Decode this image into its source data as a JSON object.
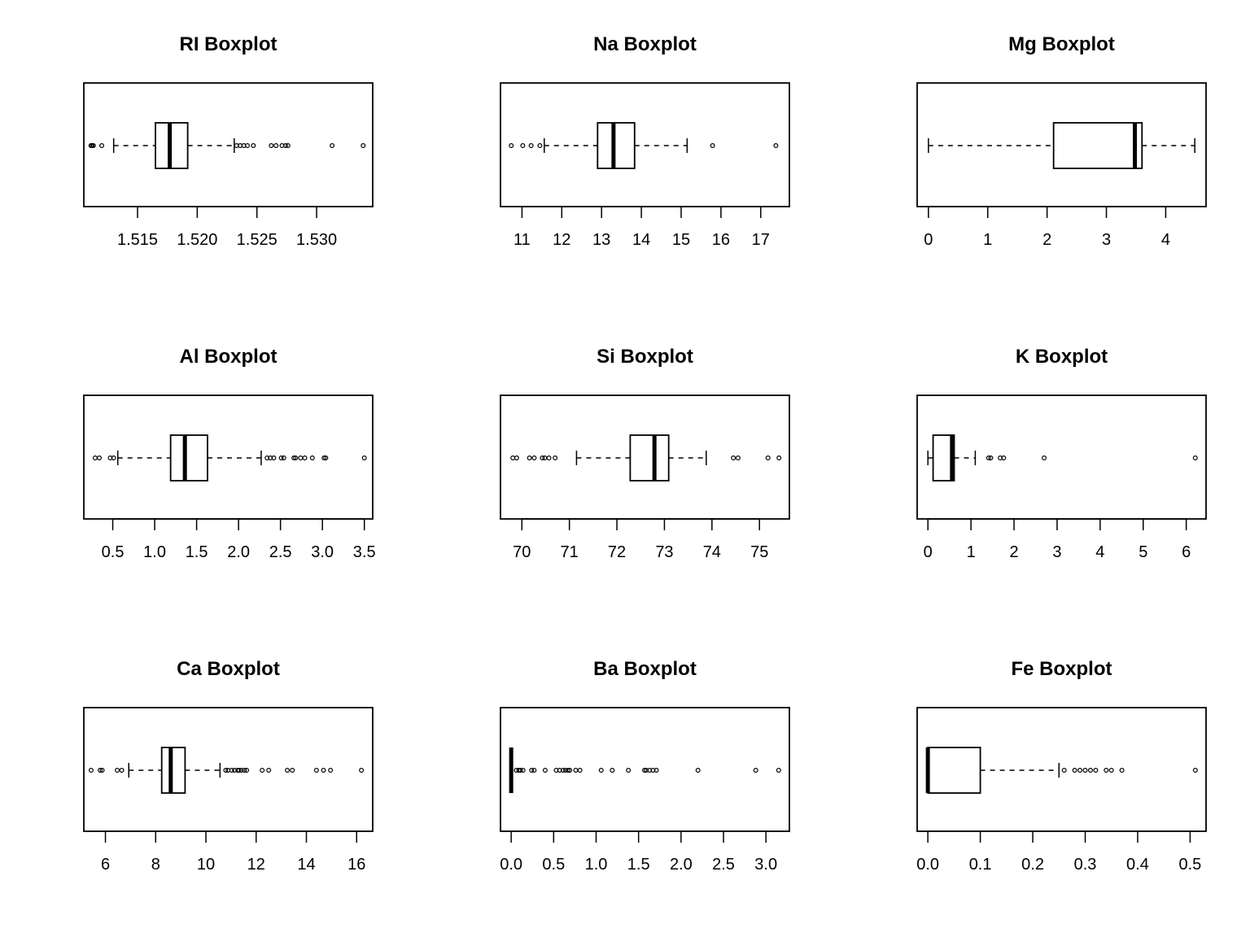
{
  "chart_data": [
    {
      "type": "boxplot",
      "orientation": "horizontal",
      "title": "RI Boxplot",
      "xlim": [
        1.5105,
        1.5347
      ],
      "ticks": [
        1.515,
        1.52,
        1.525,
        1.53
      ],
      "tick_labels": [
        "1.515",
        "1.520",
        "1.525",
        "1.530"
      ],
      "whisker_low": 1.513,
      "q1": 1.5165,
      "median": 1.5177,
      "q3": 1.5192,
      "whisker_high": 1.5231,
      "outliers": [
        1.5111,
        1.5112,
        1.5113,
        1.512,
        1.5233,
        1.5236,
        1.5239,
        1.5242,
        1.5247,
        1.5262,
        1.5266,
        1.5271,
        1.5274,
        1.5276,
        1.5313,
        1.5339
      ]
    },
    {
      "type": "boxplot",
      "orientation": "horizontal",
      "title": "Na Boxplot",
      "xlim": [
        10.46,
        17.72
      ],
      "ticks": [
        11,
        12,
        13,
        14,
        15,
        16,
        17
      ],
      "tick_labels": [
        "11",
        "12",
        "13",
        "14",
        "15",
        "16",
        "17"
      ],
      "whisker_low": 11.56,
      "q1": 12.9,
      "median": 13.3,
      "q3": 13.83,
      "whisker_high": 15.15,
      "outliers": [
        10.73,
        11.02,
        11.23,
        11.45,
        15.79,
        17.38
      ]
    },
    {
      "type": "boxplot",
      "orientation": "horizontal",
      "title": "Mg Boxplot",
      "xlim": [
        -0.19,
        4.68
      ],
      "ticks": [
        0,
        1,
        2,
        3,
        4
      ],
      "tick_labels": [
        "0",
        "1",
        "2",
        "3",
        "4"
      ],
      "whisker_low": 0.0,
      "q1": 2.11,
      "median": 3.48,
      "q3": 3.6,
      "whisker_high": 4.49,
      "outliers": []
    },
    {
      "type": "boxplot",
      "orientation": "horizontal",
      "title": "Al Boxplot",
      "xlim": [
        0.155,
        3.6
      ],
      "ticks": [
        0.5,
        1.0,
        1.5,
        2.0,
        2.5,
        3.0,
        3.5
      ],
      "tick_labels": [
        "0.5",
        "1.0",
        "1.5",
        "2.0",
        "2.5",
        "3.0",
        "3.5"
      ],
      "whisker_low": 0.56,
      "q1": 1.19,
      "median": 1.36,
      "q3": 1.63,
      "whisker_high": 2.27,
      "outliers": [
        0.29,
        0.34,
        0.47,
        0.51,
        2.34,
        2.38,
        2.42,
        2.51,
        2.54,
        2.66,
        2.68,
        2.74,
        2.79,
        2.88,
        3.02,
        3.04,
        3.5
      ]
    },
    {
      "type": "boxplot",
      "orientation": "horizontal",
      "title": "Si Boxplot",
      "xlim": [
        69.55,
        75.63
      ],
      "ticks": [
        70,
        71,
        72,
        73,
        74,
        75
      ],
      "tick_labels": [
        "70",
        "71",
        "72",
        "73",
        "74",
        "75"
      ],
      "whisker_low": 71.15,
      "q1": 72.28,
      "median": 72.79,
      "q3": 73.09,
      "whisker_high": 73.88,
      "outliers": [
        69.81,
        69.89,
        70.16,
        70.26,
        70.43,
        70.48,
        70.57,
        70.7,
        74.45,
        74.55,
        75.18,
        75.41
      ]
    },
    {
      "type": "boxplot",
      "orientation": "horizontal",
      "title": "K Boxplot",
      "xlim": [
        -0.25,
        6.46
      ],
      "ticks": [
        0,
        1,
        2,
        3,
        4,
        5,
        6
      ],
      "tick_labels": [
        "0",
        "1",
        "2",
        "3",
        "4",
        "5",
        "6"
      ],
      "whisker_low": 0.0,
      "q1": 0.12,
      "median": 0.56,
      "q3": 0.61,
      "whisker_high": 1.1,
      "outliers": [
        1.41,
        1.46,
        1.68,
        1.76,
        2.7,
        6.21
      ]
    },
    {
      "type": "boxplot",
      "orientation": "horizontal",
      "title": "Ca Boxplot",
      "xlim": [
        5.14,
        16.64
      ],
      "ticks": [
        6,
        8,
        10,
        12,
        14,
        16
      ],
      "tick_labels": [
        "6",
        "8",
        "10",
        "12",
        "14",
        "16"
      ],
      "whisker_low": 6.93,
      "q1": 8.24,
      "median": 8.6,
      "q3": 9.17,
      "whisker_high": 10.56,
      "outliers": [
        5.43,
        5.79,
        5.87,
        6.47,
        6.65,
        10.79,
        10.88,
        11.03,
        11.14,
        11.27,
        11.32,
        11.41,
        11.53,
        11.62,
        12.24,
        12.5,
        13.24,
        13.44,
        14.4,
        14.68,
        14.96,
        16.19
      ]
    },
    {
      "type": "boxplot",
      "orientation": "horizontal",
      "title": "Ba Boxplot",
      "xlim": [
        -0.126,
        3.276
      ],
      "ticks": [
        0.0,
        0.5,
        1.0,
        1.5,
        2.0,
        2.5,
        3.0
      ],
      "tick_labels": [
        "0.0",
        "0.5",
        "1.0",
        "1.5",
        "2.0",
        "2.5",
        "3.0"
      ],
      "whisker_low": 0.0,
      "q1": 0.0,
      "median": 0.0,
      "q3": 0.0,
      "whisker_high": 0.0,
      "outliers": [
        0.06,
        0.09,
        0.11,
        0.14,
        0.24,
        0.27,
        0.4,
        0.53,
        0.57,
        0.61,
        0.64,
        0.67,
        0.69,
        0.76,
        0.81,
        1.06,
        1.19,
        1.38,
        1.57,
        1.59,
        1.63,
        1.67,
        1.71,
        2.2,
        2.88,
        3.15
      ]
    },
    {
      "type": "boxplot",
      "orientation": "horizontal",
      "title": "Fe Boxplot",
      "xlim": [
        -0.0204,
        0.5304
      ],
      "ticks": [
        0.0,
        0.1,
        0.2,
        0.3,
        0.4,
        0.5
      ],
      "tick_labels": [
        "0.0",
        "0.1",
        "0.2",
        "0.3",
        "0.4",
        "0.5"
      ],
      "whisker_low": 0.0,
      "q1": 0.0,
      "median": 0.0,
      "q3": 0.1,
      "whisker_high": 0.25,
      "outliers": [
        0.26,
        0.28,
        0.29,
        0.3,
        0.31,
        0.32,
        0.34,
        0.35,
        0.37,
        0.51
      ]
    }
  ]
}
